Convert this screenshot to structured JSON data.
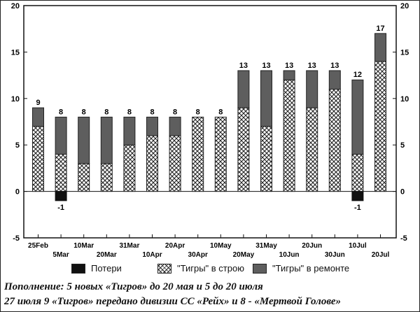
{
  "chart_data": {
    "type": "bar",
    "stacked": true,
    "categories": [
      "25Feb",
      "5Mar",
      "10Mar",
      "20Mar",
      "31Mar",
      "10Apr",
      "20Apr",
      "30Apr",
      "10May",
      "20May",
      "31May",
      "10Jun",
      "20Jun",
      "30Jun",
      "10Jul",
      "20Jul"
    ],
    "tick_rows": [
      "upper",
      "lower",
      "upper",
      "lower",
      "upper",
      "lower",
      "upper",
      "lower",
      "upper",
      "lower",
      "upper",
      "lower",
      "upper",
      "lower",
      "upper",
      "lower"
    ],
    "series": [
      {
        "name": "Потери",
        "pattern": "solid-black",
        "values": [
          0,
          -1,
          0,
          0,
          0,
          0,
          0,
          0,
          0,
          0,
          0,
          0,
          0,
          0,
          -1,
          0
        ]
      },
      {
        "name": "\"Тигры\" в строю",
        "pattern": "crosshatch",
        "values": [
          7,
          4,
          3,
          3,
          5,
          6,
          6,
          8,
          8,
          9,
          7,
          12,
          9,
          11,
          4,
          14
        ]
      },
      {
        "name": "\"Тигры\" в ремонте",
        "pattern": "dark-grey",
        "values": [
          2,
          4,
          5,
          5,
          3,
          2,
          2,
          0,
          0,
          4,
          6,
          1,
          4,
          2,
          8,
          3
        ]
      }
    ],
    "totals": [
      9,
      8,
      8,
      8,
      8,
      8,
      8,
      8,
      8,
      13,
      13,
      13,
      13,
      13,
      12,
      17
    ],
    "loss_labels": [
      "",
      "-1",
      "",
      "",
      "",
      "",
      "",
      "",
      "",
      "",
      "",
      "",
      "",
      "",
      "-1",
      ""
    ],
    "ylim": [
      -5,
      20
    ],
    "yticks": [
      "-5",
      "0",
      "5",
      "10",
      "15",
      "20"
    ],
    "grid": false,
    "legend_position": "bottom"
  },
  "legend": {
    "losses": "Потери",
    "in_service": "\"Тигры\" в строю",
    "in_repair": "\"Тигры\" в ремонте"
  },
  "caption": {
    "line1": "Пополнение: 5 новых «Тигров» до 20 мая и 5 до 20 июля",
    "line2": "27 июля 9 «Тигров» передано дивизии СС «Рейх» и 8 - «Мертвой Голове»"
  },
  "colors": {
    "repair": "#5e5e5e",
    "loss": "#111111",
    "hatch": "#222222",
    "axis": "#111111"
  }
}
